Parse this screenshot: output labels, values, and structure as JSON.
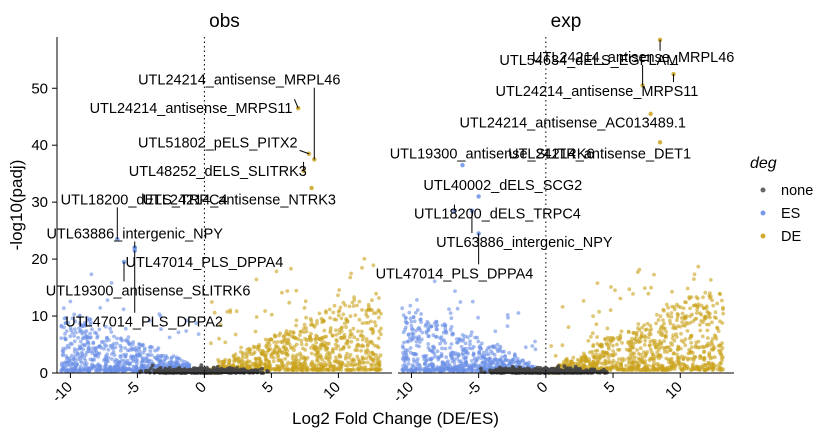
{
  "chart_data": {
    "type": "scatter",
    "xlabel": "Log2 Fold Change (DE/ES)",
    "ylabel": "-log10(padj)",
    "xlim": [
      -11,
      14
    ],
    "ylim": [
      0,
      59
    ],
    "x_ticks": [
      "-10",
      "-5",
      "0",
      "5",
      "10"
    ],
    "y_ticks": [
      "0",
      "10",
      "20",
      "30",
      "40",
      "50"
    ],
    "x_tick_values": [
      -10,
      -5,
      0,
      5,
      10
    ],
    "y_tick_values": [
      0,
      10,
      20,
      30,
      40,
      50
    ],
    "vline_x": 0,
    "legend": {
      "title": "deg",
      "placement": "right",
      "items": [
        {
          "label": "none",
          "color": "#555555"
        },
        {
          "label": "ES",
          "color": "#6a8fe6"
        },
        {
          "label": "DE",
          "color": "#c9a21a"
        }
      ]
    },
    "colors": {
      "none": "#444444",
      "ES": "#6a8fe6",
      "DE": "#c9a21a"
    },
    "panels": [
      {
        "title": "obs",
        "annotations": [
          {
            "label": "UTL24214_antisense_MRPL46",
            "x": 8.2,
            "y": 37.5,
            "label_x": 2.6,
            "label_y": 51.5
          },
          {
            "label": "UTL24214_antisense_MRPS11",
            "x": 7.0,
            "y": 46.5,
            "label_x": -1.0,
            "label_y": 46.5
          },
          {
            "label": "UTL51802_pELS_PITX2",
            "x": 7.8,
            "y": 38.5,
            "label_x": 1.0,
            "label_y": 40.5
          },
          {
            "label": "UTL48252_dELS_SLITRK3",
            "x": 7.4,
            "y": 35.5,
            "label_x": 1.0,
            "label_y": 35.5
          },
          {
            "label": "UTL18200_dELS_TRPC4",
            "x": -6.5,
            "y": 23.5,
            "label_x": -4.5,
            "label_y": 30.5
          },
          {
            "label": "UTL24214_antisense_NTRK3",
            "x": 8.0,
            "y": 32.5,
            "label_x": 2.6,
            "label_y": 30.5
          },
          {
            "label": "UTL63886_intergenic_NPY",
            "x": -5.2,
            "y": 22.0,
            "label_x": -5.2,
            "label_y": 24.5
          },
          {
            "label": "UTL47014_PLS_DPPA4",
            "x": -5.2,
            "y": 22.0,
            "label_x": 0.0,
            "label_y": 19.5
          },
          {
            "label": "UTL19300_antisense_SLITRK6",
            "x": -6.0,
            "y": 19.5,
            "label_x": -4.2,
            "label_y": 14.5
          },
          {
            "label": "UTL47014_PLS_DPPA2",
            "x": -5.2,
            "y": 21.5,
            "label_x": -4.5,
            "label_y": 9.0
          }
        ]
      },
      {
        "title": "exp",
        "annotations": [
          {
            "label": "UTL24214_antisense_MRPL46",
            "x": 7.2,
            "y": 50.5,
            "label_x": 6.5,
            "label_y": 55.5
          },
          {
            "label": "UTL54634_dELS_EGFLAM",
            "x": 8.5,
            "y": 58.5,
            "label_x": 3.2,
            "label_y": 55.0
          },
          {
            "label": "UTL24214_antisense_MRPS11",
            "x": 9.5,
            "y": 52.5,
            "label_x": 3.8,
            "label_y": 49.5
          },
          {
            "label": "UTL24214_antisense_AC013489.1",
            "x": 7.8,
            "y": 45.5,
            "label_x": 2.0,
            "label_y": 44.0
          },
          {
            "label": "UTL19300_antisense_SLITRK6",
            "x": -6.2,
            "y": 36.5,
            "label_x": -4.0,
            "label_y": 38.5
          },
          {
            "label": "UTL24214_antisense_DET1",
            "x": 8.5,
            "y": 40.5,
            "label_x": 4.0,
            "label_y": 38.5
          },
          {
            "label": "UTL40002_dELS_SCG2",
            "x": -5.0,
            "y": 31.0,
            "label_x": -3.2,
            "label_y": 33.0
          },
          {
            "label": "UTL18200_dELS_TRPC4",
            "x": -6.8,
            "y": 28.5,
            "label_x": -3.6,
            "label_y": 28.0
          },
          {
            "label": "UTL63886_intergenic_NPY",
            "x": -5.5,
            "y": 28.5,
            "label_x": -1.6,
            "label_y": 23.0
          },
          {
            "label": "UTL47014_PLS_DPPA4",
            "x": -5.0,
            "y": 24.5,
            "label_x": -6.8,
            "label_y": 17.5
          }
        ]
      }
    ]
  }
}
